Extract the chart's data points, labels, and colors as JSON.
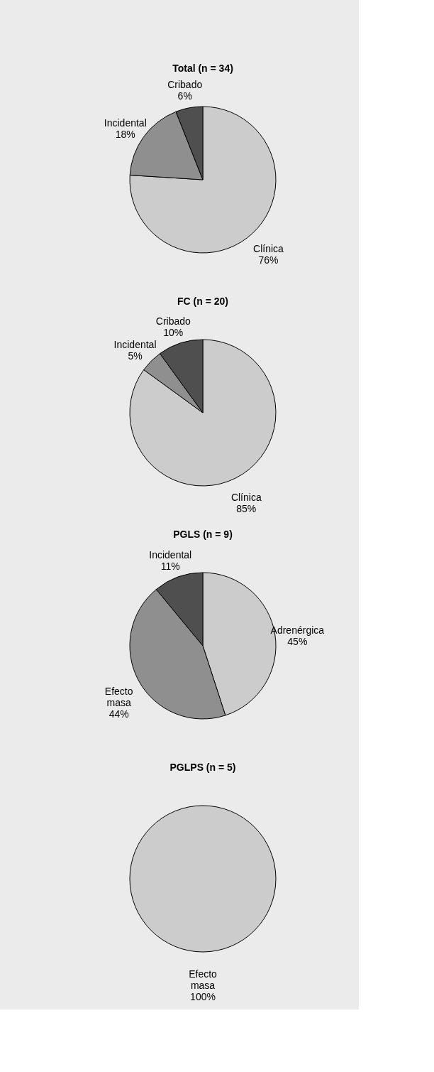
{
  "chart_data": [
    {
      "type": "pie",
      "title": "Total (n = 34)",
      "categories": [
        "Clínica",
        "Incidental",
        "Cribado"
      ],
      "values": [
        76,
        18,
        6
      ],
      "value_labels": [
        "76%",
        "18%",
        "6%"
      ],
      "colors": [
        "#cccccc",
        "#8f8f8f",
        "#4f4f4f"
      ],
      "legend": false
    },
    {
      "type": "pie",
      "title": "FC (n = 20)",
      "categories": [
        "Clínica",
        "Incidental",
        "Cribado"
      ],
      "values": [
        85,
        5,
        10
      ],
      "value_labels": [
        "85%",
        "5%",
        "10%"
      ],
      "colors": [
        "#cccccc",
        "#8f8f8f",
        "#4f4f4f"
      ],
      "legend": false
    },
    {
      "type": "pie",
      "title": "PGLS (n = 9)",
      "categories": [
        "Adrenérgica",
        "Efecto masa",
        "Incidental"
      ],
      "values": [
        45,
        44,
        11
      ],
      "value_labels": [
        "45%",
        "44%",
        "11%"
      ],
      "colors": [
        "#cccccc",
        "#8f8f8f",
        "#4f4f4f"
      ],
      "legend": false
    },
    {
      "type": "pie",
      "title": "PGLPS (n = 5)",
      "categories": [
        "Efecto masa"
      ],
      "values": [
        100
      ],
      "value_labels": [
        "100%"
      ],
      "colors": [
        "#cccccc"
      ],
      "legend": false
    }
  ]
}
